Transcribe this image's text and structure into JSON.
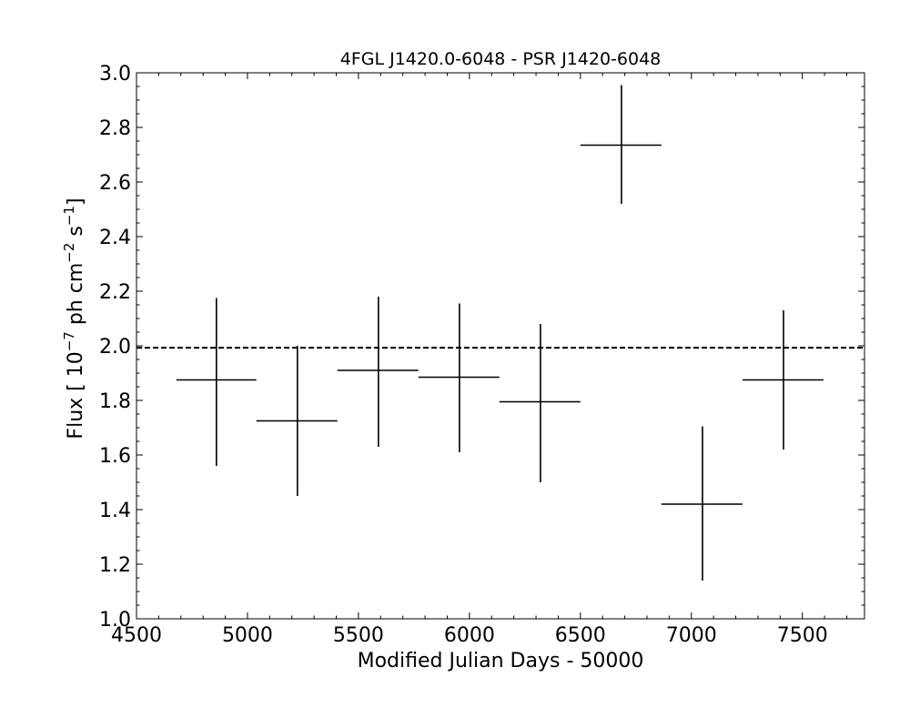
{
  "chart_data": {
    "type": "scatter",
    "title": "4FGL J1420.0-6048 - PSR J1420-6048",
    "xlabel": "Modified Julian Days - 50000",
    "ylabel": {
      "prefix": "Flux [ 10",
      "exp1": "−7",
      "mid": " ph cm",
      "exp2": "−2",
      "mid2": " s",
      "exp3": "−1",
      "suffix": "]"
    },
    "xlim": [
      4500,
      7780
    ],
    "ylim": [
      1.0,
      3.0
    ],
    "xticks": [
      4500,
      5000,
      5500,
      6000,
      6500,
      7000,
      7500
    ],
    "xtick_labels": [
      "4500",
      "5000",
      "5500",
      "6000",
      "6500",
      "7000",
      "7500"
    ],
    "yticks": [
      1.0,
      1.2,
      1.4,
      1.6,
      1.8,
      2.0,
      2.2,
      2.4,
      2.6,
      2.8,
      3.0
    ],
    "ytick_labels": [
      "1.0",
      "1.2",
      "1.4",
      "1.6",
      "1.8",
      "2.0",
      "2.2",
      "2.4",
      "2.6",
      "2.8",
      "3.0"
    ],
    "series": [
      {
        "points": [
          {
            "x": 4860,
            "x_lo": 4680,
            "x_hi": 5040,
            "y": 1.875,
            "y_lo": 1.56,
            "y_hi": 2.175
          },
          {
            "x": 5225,
            "x_lo": 5040,
            "x_hi": 5405,
            "y": 1.725,
            "y_lo": 1.45,
            "y_hi": 2.0
          },
          {
            "x": 5590,
            "x_lo": 5405,
            "x_hi": 5770,
            "y": 1.91,
            "y_lo": 1.63,
            "y_hi": 2.18
          },
          {
            "x": 5955,
            "x_lo": 5770,
            "x_hi": 6135,
            "y": 1.885,
            "y_lo": 1.61,
            "y_hi": 2.155
          },
          {
            "x": 6320,
            "x_lo": 6135,
            "x_hi": 6500,
            "y": 1.795,
            "y_lo": 1.5,
            "y_hi": 2.08
          },
          {
            "x": 6685,
            "x_lo": 6500,
            "x_hi": 6865,
            "y": 2.735,
            "y_lo": 2.52,
            "y_hi": 2.955
          },
          {
            "x": 7050,
            "x_lo": 6865,
            "x_hi": 7230,
            "y": 1.42,
            "y_lo": 1.14,
            "y_hi": 1.705
          },
          {
            "x": 7415,
            "x_lo": 7230,
            "x_hi": 7595,
            "y": 1.875,
            "y_lo": 1.62,
            "y_hi": 2.13
          }
        ]
      }
    ],
    "reference_line": {
      "y": 1.993,
      "style": "dashed"
    },
    "grid": false,
    "legend": "none",
    "colors": {
      "marks": "#000000",
      "background": "#ffffff"
    }
  }
}
